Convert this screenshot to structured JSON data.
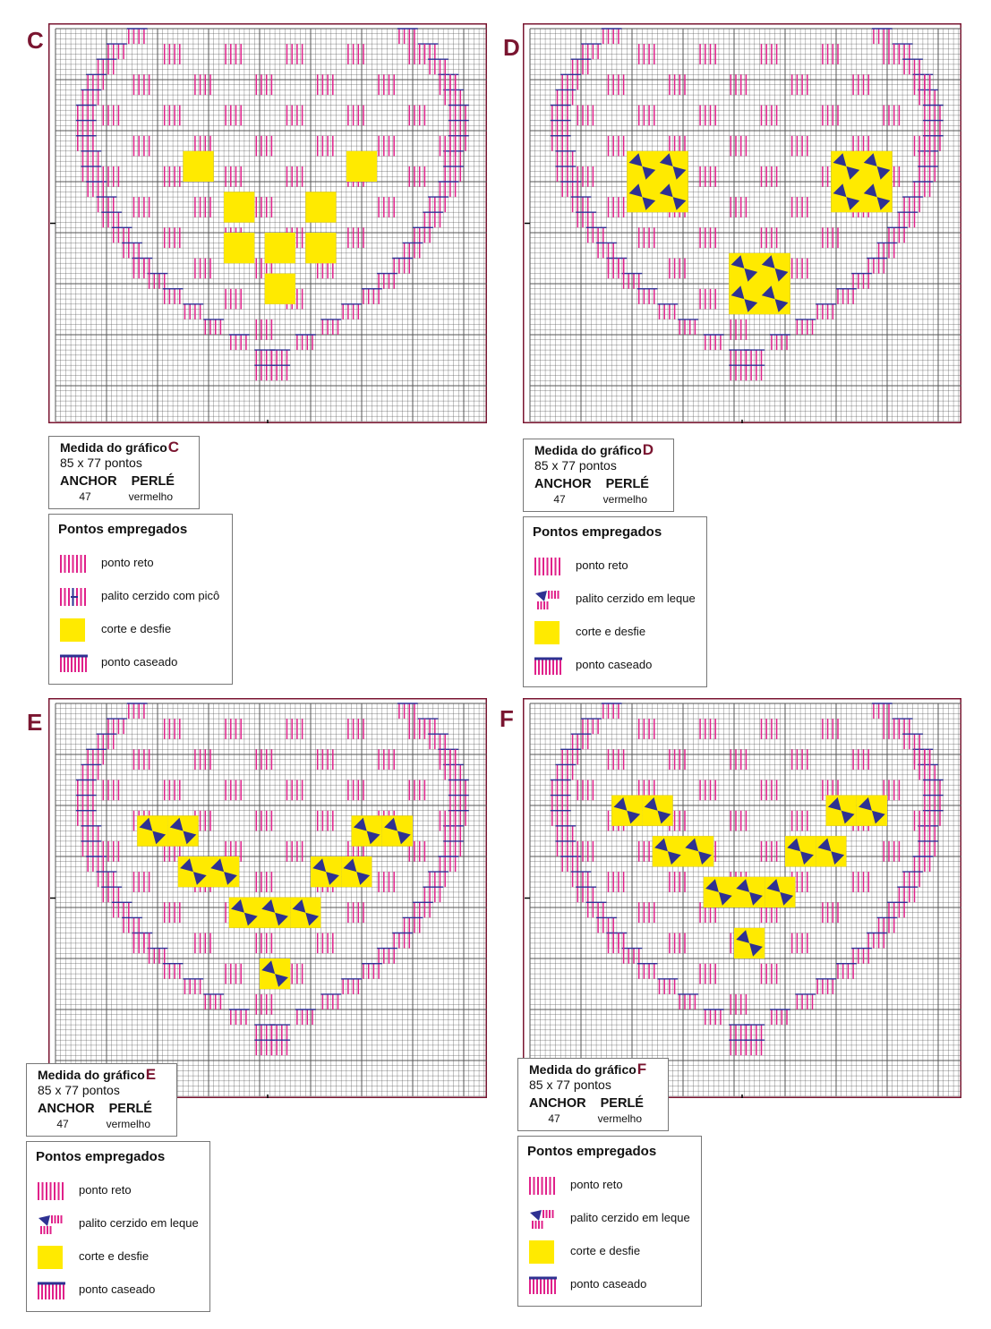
{
  "colors": {
    "pink": "#e0218a",
    "navy": "#2e3192",
    "yellow": "#ffea00",
    "frame": "#7a1530",
    "grid": "#555555"
  },
  "panels": [
    {
      "letter": "C",
      "info": {
        "title": "Medida do gráfico",
        "suffix": "C",
        "size": "85 x 77 pontos",
        "brand": "ANCHOR",
        "type": "PERLÉ",
        "code": "47",
        "color": "vermelho"
      },
      "legend": {
        "title": "Pontos empregados",
        "items": [
          {
            "icon": "straight-stitch-icon",
            "label": "ponto reto"
          },
          {
            "icon": "woven-bar-picot-icon",
            "label": "palito cerzido com picô"
          },
          {
            "icon": "cut-and-withdraw-icon",
            "label": "corte e desfie"
          },
          {
            "icon": "buttonhole-stitch-icon",
            "label": "ponto caseado"
          }
        ]
      }
    },
    {
      "letter": "D",
      "info": {
        "title": "Medida do gráfico",
        "suffix": "D",
        "size": "85 x 77 pontos",
        "brand": "ANCHOR",
        "type": "PERLÉ",
        "code": "47",
        "color": "vermelho"
      },
      "legend": {
        "title": "Pontos empregados",
        "items": [
          {
            "icon": "straight-stitch-icon",
            "label": "ponto reto"
          },
          {
            "icon": "fan-woven-bar-icon",
            "label": "palito cerzido em leque"
          },
          {
            "icon": "cut-and-withdraw-icon",
            "label": "corte e desfie"
          },
          {
            "icon": "buttonhole-stitch-icon",
            "label": "ponto caseado"
          }
        ]
      }
    },
    {
      "letter": "E",
      "info": {
        "title": "Medida do gráfico",
        "suffix": "E",
        "size": "85 x 77 pontos",
        "brand": "ANCHOR",
        "type": "PERLÉ",
        "code": "47",
        "color": "vermelho"
      },
      "legend": {
        "title": "Pontos empregados",
        "items": [
          {
            "icon": "straight-stitch-icon",
            "label": "ponto reto"
          },
          {
            "icon": "fan-woven-bar-icon",
            "label": "palito cerzido em leque"
          },
          {
            "icon": "cut-and-withdraw-icon",
            "label": "corte e desfie"
          },
          {
            "icon": "buttonhole-stitch-icon",
            "label": "ponto caseado"
          }
        ]
      }
    },
    {
      "letter": "F",
      "info": {
        "title": "Medida do gráfico",
        "suffix": "F",
        "size": "85 x 77 pontos",
        "brand": "ANCHOR",
        "type": "PERLÉ",
        "code": "47",
        "color": "vermelho"
      },
      "legend": {
        "title": "Pontos empregados",
        "items": [
          {
            "icon": "straight-stitch-icon",
            "label": "ponto reto"
          },
          {
            "icon": "fan-woven-bar-icon",
            "label": "palito cerzido em leque"
          },
          {
            "icon": "cut-and-withdraw-icon",
            "label": "corte e desfie"
          },
          {
            "icon": "buttonhole-stitch-icon",
            "label": "ponto caseado"
          }
        ]
      }
    }
  ]
}
